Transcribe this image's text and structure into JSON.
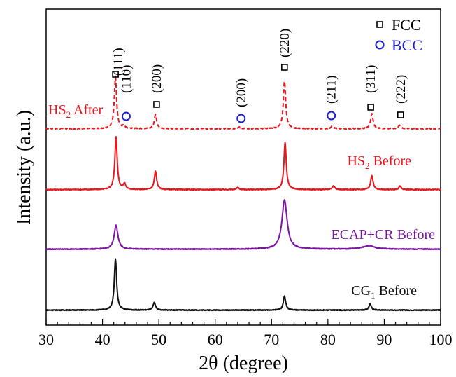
{
  "chart_data": {
    "type": "line",
    "xlabel": "2θ (degree)",
    "ylabel": "Intensity (a.u.)",
    "xlim": [
      30,
      100
    ],
    "xticks": [
      30,
      40,
      50,
      60,
      70,
      80,
      90,
      100
    ],
    "y_ticks_shown": false,
    "grid": false,
    "legend": {
      "position": "top-right",
      "entries": [
        {
          "label": "FCC",
          "marker": "square",
          "color": "#000000"
        },
        {
          "label": "BCC",
          "marker": "circle",
          "color": "#1f1fd0"
        }
      ]
    },
    "series": [
      {
        "name_main": "HS",
        "name_sub": "2",
        "name_tail": " After",
        "color": "#e8161d",
        "dash": true,
        "baseline": 0.8,
        "x": [
          42.3,
          43.8,
          49.4,
          64.3,
          72.3,
          80.8,
          87.8,
          92.7
        ],
        "y": [
          7.3,
          0.4,
          2.0,
          0.2,
          6.8,
          0.4,
          2.2,
          0.5
        ]
      },
      {
        "name_main": "HS",
        "name_sub": "2",
        "name_tail": " Before",
        "color": "#e8161d",
        "dash": false,
        "baseline": 0.8,
        "x": [
          42.4,
          43.9,
          49.4,
          64.0,
          72.4,
          81.0,
          87.8,
          92.8
        ],
        "y": [
          7.5,
          0.8,
          2.6,
          0.3,
          6.7,
          0.5,
          2.0,
          0.5
        ]
      },
      {
        "name_main": "ECAP+CR Before",
        "name_sub": "",
        "name_tail": "",
        "color": "#7a16a0",
        "dash": false,
        "baseline": 0.8,
        "x": [
          42.4,
          72.3,
          87.2
        ],
        "y": [
          3.4,
          7.0,
          0.5
        ]
      },
      {
        "name_main": "CG",
        "name_sub": "1",
        "name_tail": " Before",
        "color": "#111111",
        "dash": false,
        "baseline": 0.8,
        "x": [
          42.3,
          49.2,
          72.3,
          87.5
        ],
        "y": [
          7.3,
          1.1,
          2.0,
          0.9
        ]
      }
    ],
    "peak_annotations": [
      {
        "label": "(111)",
        "phase": "FCC",
        "x": 42.3
      },
      {
        "label": "(110)",
        "phase": "BCC",
        "x": 44.2
      },
      {
        "label": "(200)",
        "phase": "FCC",
        "x": 49.6
      },
      {
        "label": "(200)",
        "phase": "BCC",
        "x": 64.6
      },
      {
        "label": "(220)",
        "phase": "FCC",
        "x": 72.3
      },
      {
        "label": "(211)",
        "phase": "BCC",
        "x": 80.6
      },
      {
        "label": "(311)",
        "phase": "FCC",
        "x": 87.6
      },
      {
        "label": "(222)",
        "phase": "FCC",
        "x": 92.9
      }
    ]
  }
}
